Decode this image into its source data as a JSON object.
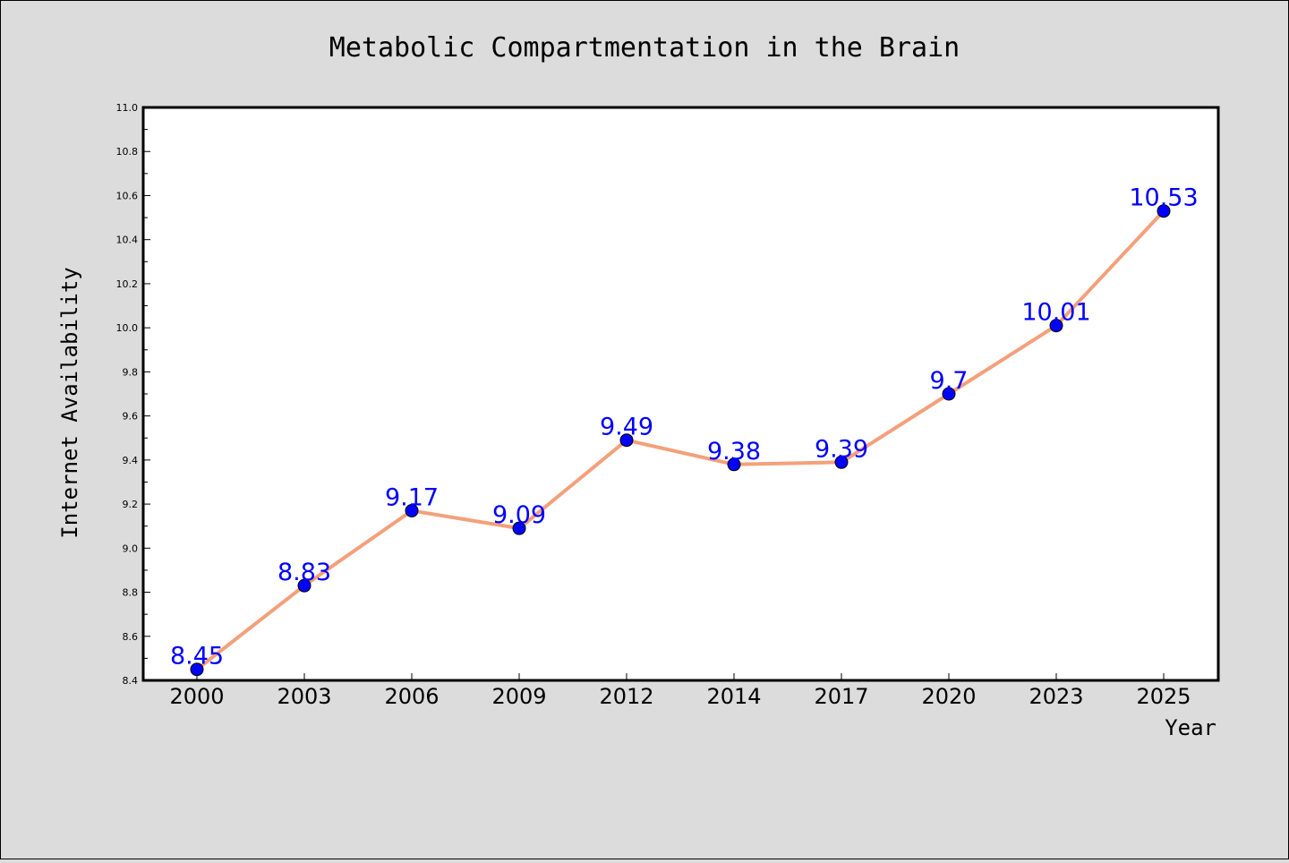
{
  "chart_data": {
    "type": "line",
    "title": "Metabolic Compartmentation in the Brain",
    "xlabel": "Year",
    "ylabel": "Internet Availability",
    "categories": [
      "2000",
      "2003",
      "2006",
      "2009",
      "2012",
      "2014",
      "2017",
      "2020",
      "2023",
      "2025"
    ],
    "series": [
      {
        "values": [
          8.45,
          8.83,
          9.17,
          9.09,
          9.49,
          9.38,
          9.39,
          9.7,
          10.01,
          10.53
        ],
        "labels": [
          "8.45",
          "8.83",
          "9.17",
          "9.09",
          "9.49",
          "9.38",
          "9.39",
          "9.7",
          "10.01",
          "10.53"
        ],
        "line_color": "#f4a07a",
        "marker_color": "#0000ff"
      }
    ],
    "ylim": [
      8.4,
      11.0
    ],
    "yticks": [
      "8.4",
      "8.6",
      "8.8",
      "9.0",
      "9.2",
      "9.4",
      "9.6",
      "9.8",
      "10.0",
      "10.2",
      "10.4",
      "10.6",
      "10.8",
      "11.0"
    ],
    "grid": false,
    "legend": "none",
    "colors": {
      "background": "#dcdcdc",
      "plot_background": "#ffffff",
      "data_label": "#0000ff"
    }
  }
}
